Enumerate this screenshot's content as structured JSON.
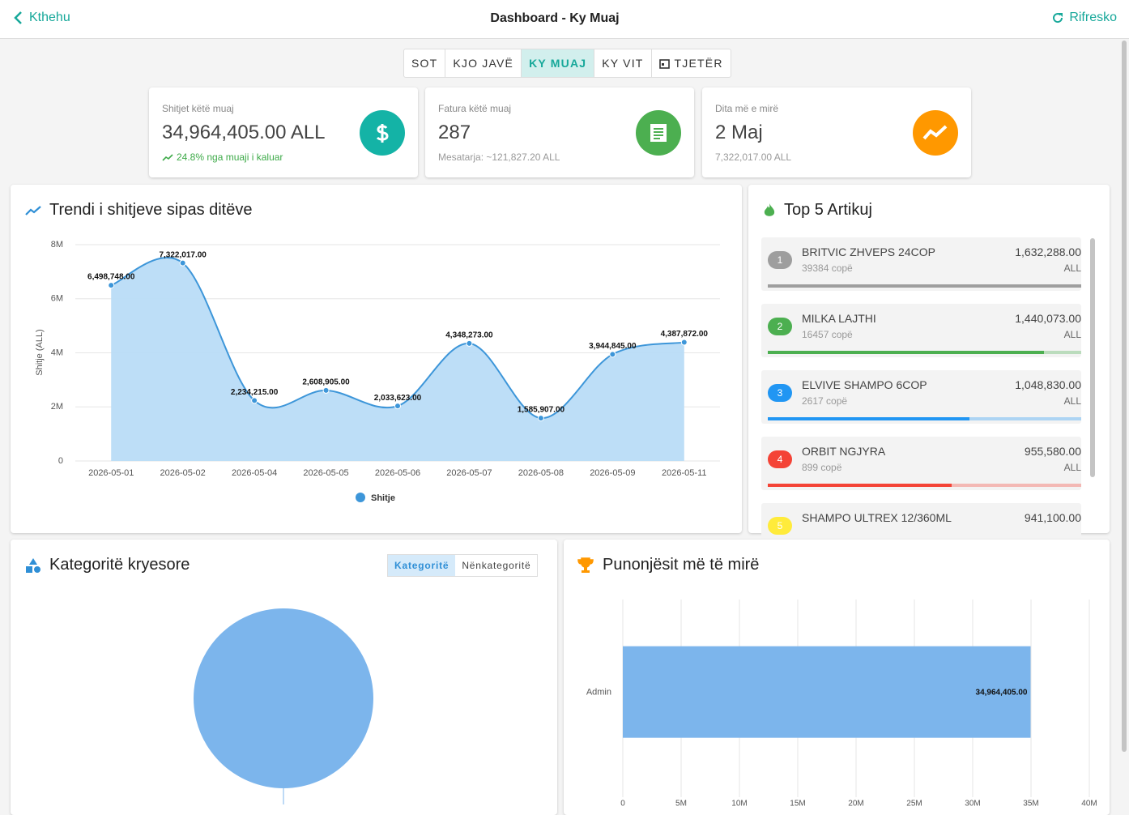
{
  "header": {
    "back": "Kthehu",
    "title": "Dashboard - Ky Muaj",
    "refresh": "Rifresko"
  },
  "tabs": [
    "SOT",
    "KJO JAVË",
    "KY MUAJ",
    "KY VIT",
    "TJETËR"
  ],
  "active_tab": 2,
  "cards": [
    {
      "label": "Shitjet këtë muaj",
      "value": "34,964,405.00 ALL",
      "note": "24.8% nga muaji i kaluar"
    },
    {
      "label": "Fatura këtë muaj",
      "value": "287",
      "note": "Mesatarja: ~121,827.20 ALL"
    },
    {
      "label": "Dita më e mirë",
      "value": "2 Maj",
      "note": "7,322,017.00 ALL"
    }
  ],
  "top_items": {
    "title": "Top 5 Artikuj",
    "items": [
      {
        "rank": 1,
        "name": "BRITVIC ZHVEPS 24COP",
        "quantity": "39384 copë",
        "value": 1632288,
        "value_label": "1,632,288.00",
        "currency": "ALL",
        "color": "#9e9e9e"
      },
      {
        "rank": 2,
        "name": "MILKA LAJTHI",
        "quantity": "16457 copë",
        "value": 1440073,
        "value_label": "1,440,073.00",
        "currency": "ALL",
        "color": "#4caf50"
      },
      {
        "rank": 3,
        "name": "ELVIVE SHAMPO 6COP",
        "quantity": "2617 copë",
        "value": 1048830,
        "value_label": "1,048,830.00",
        "currency": "ALL",
        "color": "#2196f3"
      },
      {
        "rank": 4,
        "name": "ORBIT NGJYRA",
        "quantity": "899 copë",
        "value": 955580,
        "value_label": "955,580.00",
        "currency": "ALL",
        "color": "#f44336"
      },
      {
        "rank": 5,
        "name": "SHAMPO ULTREX 12/360ML",
        "value": 941100,
        "value_label": "941,100.00",
        "color": "#ffeb3b"
      }
    ]
  },
  "chart_data": [
    {
      "type": "line",
      "title": "Trendi i shitjeve sipas ditëve",
      "y_label": "Shitje (ALL)",
      "categories": [
        "2026-05-01",
        "2026-05-02",
        "2026-05-04",
        "2026-05-05",
        "2026-05-06",
        "2026-05-07",
        "2026-05-08",
        "2026-05-09",
        "2026-05-11"
      ],
      "series": [
        {
          "name": "Shitje",
          "color": "#3d96d9",
          "fill": "#b9dcf7",
          "values": [
            6498748,
            7322017,
            2234215,
            2608905,
            2033623,
            4348273,
            1585907,
            3944845,
            4387872
          ],
          "value_labels": [
            "6,498,748.00",
            "7,322,017.00",
            "2,234,215.00",
            "2,608,905.00",
            "2,033,623.00",
            "4,348,273.00",
            "1,585,907.00",
            "3,944,845.00",
            "4,387,872.00"
          ]
        }
      ],
      "ylim": [
        0,
        8000000
      ],
      "yticks": [
        0,
        {
          "value": 2000000,
          "label": "2M"
        },
        {
          "value": 4000000,
          "label": "4M"
        },
        {
          "value": 6000000,
          "label": "6M"
        },
        {
          "value": 8000000,
          "label": "8M"
        }
      ],
      "grid": true
    },
    {
      "type": "pie",
      "title": "Kategoritë kryesore",
      "toggle": [
        "Kategoritë",
        "Nënkategoritë"
      ],
      "categories": [
        null
      ],
      "values": [
        34964405
      ],
      "colors": [
        "#7cb5ec"
      ]
    },
    {
      "type": "hbar",
      "title": "Punonjësit më të mirë",
      "categories": [
        "Admin"
      ],
      "values": [
        34964405
      ],
      "value_labels": [
        "34,964,405.00"
      ],
      "color": "#7cb5ec",
      "xlim": [
        0,
        40000000
      ],
      "xticks": [
        0,
        {
          "value": 5000000,
          "label": "5M"
        },
        {
          "value": 10000000,
          "label": "10M"
        },
        {
          "value": 15000000,
          "label": "15M"
        },
        {
          "value": 20000000,
          "label": "20M"
        },
        {
          "value": 25000000,
          "label": "25M"
        },
        {
          "value": 30000000,
          "label": "30M"
        },
        {
          "value": 35000000,
          "label": "35M"
        },
        {
          "value": 40000000,
          "label": "40M"
        }
      ],
      "grid": true
    }
  ]
}
